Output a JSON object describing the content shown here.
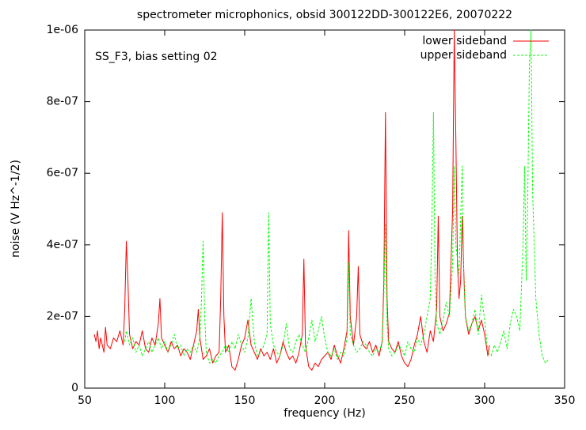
{
  "chart_data": {
    "type": "line",
    "title": "spectrometer microphonics, obsid 300122DD-300122E6, 20070222",
    "annotation": "SS_F3, bias setting 02",
    "xlabel": "frequency (Hz)",
    "ylabel": "noise (V Hz^-1/2)",
    "xlim": [
      50,
      350
    ],
    "xticks": [
      50,
      100,
      150,
      200,
      250,
      300,
      350
    ],
    "ylim": [
      0,
      1e-06
    ],
    "yticks": [
      0,
      {
        "value": 2e-07,
        "label": "2e-07"
      },
      {
        "value": 4e-07,
        "label": "4e-07"
      },
      {
        "value": 6e-07,
        "label": "6e-07"
      },
      {
        "value": 8e-07,
        "label": "8e-07"
      },
      {
        "value": 1e-06,
        "label": "1e-06"
      }
    ],
    "legend": "upper right",
    "series": [
      {
        "name": "lower sideband",
        "color": "#ff0000",
        "dash": false,
        "x": [
          56,
          57,
          58,
          59,
          60,
          62,
          63,
          64,
          66,
          68,
          70,
          72,
          74,
          75,
          76,
          77,
          78,
          80,
          82,
          84,
          86,
          88,
          90,
          92,
          94,
          96,
          97,
          98,
          100,
          102,
          104,
          106,
          108,
          110,
          112,
          114,
          116,
          118,
          120,
          121,
          122,
          124,
          126,
          128,
          130,
          132,
          134,
          135,
          136,
          137,
          138,
          140,
          142,
          144,
          146,
          148,
          150,
          152,
          154,
          156,
          158,
          160,
          162,
          164,
          166,
          168,
          170,
          172,
          174,
          176,
          178,
          180,
          182,
          184,
          186,
          187,
          188,
          190,
          192,
          194,
          196,
          198,
          200,
          202,
          204,
          206,
          208,
          210,
          212,
          214,
          215,
          216,
          218,
          220,
          221,
          222,
          224,
          226,
          228,
          230,
          232,
          234,
          236,
          237,
          238,
          239,
          240,
          242,
          244,
          246,
          248,
          250,
          252,
          254,
          256,
          258,
          260,
          262,
          264,
          266,
          268,
          270,
          271,
          272,
          274,
          276,
          278,
          280,
          281,
          282,
          283,
          284,
          285,
          286,
          287,
          288,
          290,
          292,
          294,
          296,
          298,
          300,
          302,
          303
        ],
        "values": [
          1.5e-07,
          1.3e-07,
          1.6e-07,
          1.1e-07,
          1.4e-07,
          1e-07,
          1.7e-07,
          1.2e-07,
          1.1e-07,
          1.4e-07,
          1.3e-07,
          1.6e-07,
          1.2e-07,
          2.2e-07,
          4.1e-07,
          3e-07,
          1.5e-07,
          1.1e-07,
          1.3e-07,
          1.2e-07,
          1.6e-07,
          1.1e-07,
          1e-07,
          1.4e-07,
          1.2e-07,
          1.8e-07,
          2.5e-07,
          1.4e-07,
          1.2e-07,
          1e-07,
          1.3e-07,
          1.1e-07,
          1.2e-07,
          9e-08,
          1.1e-07,
          1e-07,
          8e-08,
          1.2e-07,
          1.6e-07,
          2.2e-07,
          1.4e-07,
          8e-08,
          9e-08,
          1.1e-07,
          7e-08,
          9e-08,
          1e-07,
          2.5e-07,
          4.9e-07,
          2e-07,
          1e-07,
          1.2e-07,
          6e-08,
          5e-08,
          8e-08,
          1.2e-07,
          1.4e-07,
          1.9e-07,
          1.2e-07,
          1e-07,
          8e-08,
          1.1e-07,
          9e-08,
          1e-07,
          8e-08,
          1.1e-07,
          7e-08,
          9e-08,
          1.3e-07,
          1e-07,
          8e-08,
          9e-08,
          7e-08,
          1e-07,
          1.5e-07,
          3.6e-07,
          1.2e-07,
          6e-08,
          5e-08,
          7e-08,
          6e-08,
          8e-08,
          9e-08,
          1e-07,
          8e-08,
          1.2e-07,
          9e-08,
          7e-08,
          1.1e-07,
          1.6e-07,
          4.4e-07,
          2e-07,
          1.2e-07,
          2e-07,
          3.4e-07,
          1.5e-07,
          1.2e-07,
          1.1e-07,
          1.3e-07,
          1e-07,
          1.2e-07,
          9e-08,
          1.3e-07,
          3e-07,
          7.7e-07,
          2.5e-07,
          1.3e-07,
          1.1e-07,
          1e-07,
          1.3e-07,
          9e-08,
          7e-08,
          6e-08,
          8e-08,
          1.2e-07,
          1.5e-07,
          2e-07,
          1.3e-07,
          1e-07,
          1.6e-07,
          1.3e-07,
          2.2e-07,
          4.8e-07,
          2e-07,
          1.6e-07,
          1.8e-07,
          2.1e-07,
          5e-07,
          1e-06,
          7e-07,
          3.5e-07,
          2.5e-07,
          3e-07,
          4.8e-07,
          3.2e-07,
          2e-07,
          1.5e-07,
          1.8e-07,
          2e-07,
          1.6e-07,
          1.9e-07,
          1.5e-07,
          9e-08,
          1.2e-07
        ]
      },
      {
        "name": "upper sideband",
        "color": "#00ff00",
        "dash": true,
        "x": [
          75,
          76,
          78,
          80,
          82,
          84,
          86,
          88,
          90,
          92,
          94,
          96,
          98,
          100,
          102,
          104,
          106,
          108,
          110,
          112,
          114,
          116,
          118,
          120,
          122,
          123,
          124,
          125,
          126,
          128,
          130,
          132,
          134,
          136,
          138,
          140,
          142,
          144,
          146,
          148,
          150,
          152,
          154,
          156,
          158,
          160,
          162,
          164,
          165,
          166,
          168,
          170,
          172,
          174,
          176,
          178,
          180,
          182,
          184,
          186,
          188,
          190,
          192,
          194,
          196,
          198,
          200,
          202,
          204,
          206,
          208,
          210,
          212,
          214,
          215,
          216,
          218,
          220,
          222,
          224,
          226,
          228,
          230,
          232,
          234,
          236,
          237,
          238,
          239,
          240,
          242,
          244,
          246,
          248,
          250,
          252,
          254,
          256,
          258,
          260,
          262,
          264,
          266,
          267,
          268,
          269,
          270,
          272,
          274,
          276,
          278,
          280,
          281,
          282,
          284,
          286,
          287,
          288,
          290,
          292,
          294,
          296,
          298,
          300,
          302,
          304,
          306,
          308,
          310,
          312,
          314,
          316,
          318,
          320,
          322,
          324,
          325,
          326,
          327,
          328,
          329,
          330,
          332,
          334,
          336,
          338,
          340
        ],
        "values": [
          1.3e-07,
          1.6e-07,
          1.2e-07,
          1.4e-07,
          1e-07,
          1.2e-07,
          9e-08,
          1.1e-07,
          1.3e-07,
          1e-07,
          1.2e-07,
          1.4e-07,
          1.1e-07,
          1.3e-07,
          1e-07,
          1.2e-07,
          1.5e-07,
          1.1e-07,
          1.2e-07,
          9e-08,
          1.1e-07,
          1e-07,
          1.2e-07,
          1e-07,
          1.4e-07,
          2.5e-07,
          4.1e-07,
          2e-07,
          1e-07,
          7e-08,
          8e-08,
          7e-08,
          9e-08,
          1e-07,
          1.2e-07,
          1e-07,
          1.3e-07,
          1.1e-07,
          1.5e-07,
          1.2e-07,
          1e-07,
          1.4e-07,
          2.5e-07,
          1.3e-07,
          9e-08,
          1e-07,
          1.2e-07,
          1.5e-07,
          4.9e-07,
          1.8e-07,
          1.2e-07,
          1e-07,
          9e-08,
          1.2e-07,
          1.8e-07,
          1.1e-07,
          1e-07,
          1.3e-07,
          1.5e-07,
          1.2e-07,
          1e-07,
          1.4e-07,
          1.9e-07,
          1.3e-07,
          1.6e-07,
          2e-07,
          1.4e-07,
          1e-07,
          9e-08,
          1.1e-07,
          8e-08,
          1e-07,
          9e-08,
          1.4e-07,
          3.5e-07,
          1.5e-07,
          1.2e-07,
          1e-07,
          1.1e-07,
          1.3e-07,
          1.2e-07,
          1e-07,
          9e-08,
          1.1e-07,
          1e-07,
          1.3e-07,
          2.6e-07,
          4.6e-07,
          1.8e-07,
          1.1e-07,
          9e-08,
          1e-07,
          1.2e-07,
          1.1e-07,
          9e-08,
          1.3e-07,
          1.1e-07,
          1e-07,
          1.4e-07,
          1.2e-07,
          1.5e-07,
          2e-07,
          2.5e-07,
          4.5e-07,
          7.7e-07,
          3e-07,
          1.8e-07,
          1.5e-07,
          1.9e-07,
          2.4e-07,
          2e-07,
          3.5e-07,
          6.2e-07,
          4e-07,
          3.2e-07,
          6.2e-07,
          3e-07,
          2e-07,
          1.6e-07,
          1.8e-07,
          2.2e-07,
          1.5e-07,
          2.6e-07,
          1.9e-07,
          1e-07,
          9e-08,
          1.2e-07,
          1e-07,
          1.3e-07,
          1.6e-07,
          1.1e-07,
          1.8e-07,
          2.2e-07,
          2e-07,
          1.6e-07,
          4e-07,
          6.2e-07,
          3e-07,
          5.5e-07,
          9e-07,
          1e-06,
          5.5e-07,
          2.5e-07,
          1.5e-07,
          9e-08,
          7e-08,
          8e-08
        ]
      }
    ]
  }
}
